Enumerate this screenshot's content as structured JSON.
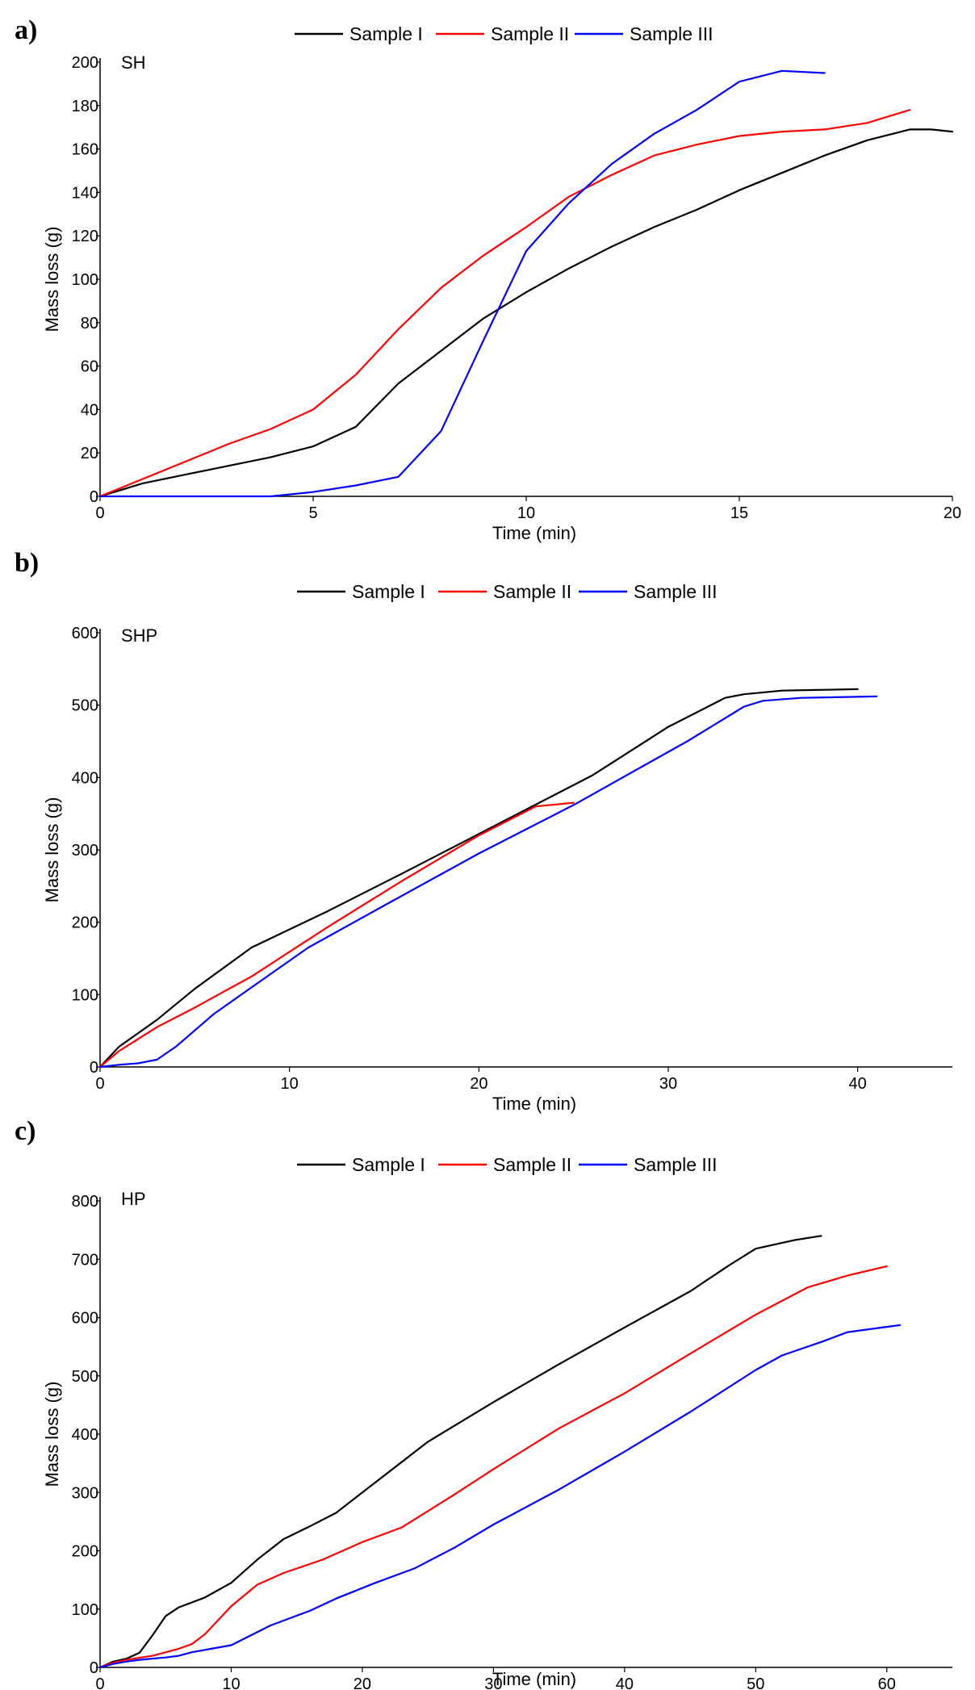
{
  "colors": {
    "Sample I": "#000000",
    "Sample II": "#ff0000",
    "Sample III": "#0000ff"
  },
  "chart_data": [
    {
      "type": "line",
      "panel_label": "a)",
      "title": "SH",
      "xlabel": "Time (min)",
      "ylabel": "Mass loss (g)",
      "xlim": [
        0,
        20
      ],
      "ylim": [
        0,
        200
      ],
      "xticks": [
        0,
        5,
        10,
        15,
        20
      ],
      "yticks": [
        0,
        20,
        40,
        60,
        80,
        100,
        120,
        140,
        160,
        180,
        200
      ],
      "legend": [
        "Sample I",
        "Sample II",
        "Sample III"
      ],
      "series": [
        {
          "name": "Sample I",
          "x": [
            0,
            1,
            2,
            3,
            4,
            5,
            6,
            7,
            8,
            9,
            10,
            11,
            12,
            13,
            14,
            15,
            16,
            17,
            18,
            19,
            19.5,
            20
          ],
          "y": [
            0,
            6,
            10,
            14,
            18,
            23,
            32,
            52,
            67,
            82,
            94,
            105,
            115,
            124,
            132,
            141,
            149,
            157,
            164,
            169,
            169,
            168
          ]
        },
        {
          "name": "Sample II",
          "x": [
            0,
            1,
            2,
            3,
            4,
            5,
            6,
            7,
            8,
            9,
            10,
            11,
            12,
            13,
            14,
            15,
            16,
            17,
            18,
            19
          ],
          "y": [
            0,
            8,
            16,
            24,
            31,
            40,
            56,
            77,
            96,
            111,
            124,
            138,
            148,
            157,
            162,
            166,
            168,
            169,
            172,
            178
          ]
        },
        {
          "name": "Sample III",
          "x": [
            0,
            1,
            2,
            3,
            4,
            5,
            6,
            7,
            8,
            9,
            10,
            11,
            12,
            13,
            14,
            15,
            16,
            17
          ],
          "y": [
            0,
            0,
            0,
            0,
            0,
            2,
            5,
            9,
            30,
            72,
            113,
            135,
            153,
            167,
            178,
            191,
            196,
            195
          ]
        }
      ]
    },
    {
      "type": "line",
      "panel_label": "b)",
      "title": "SHP",
      "xlabel": "Time (min)",
      "ylabel": "Mass loss (g)",
      "xlim": [
        0,
        45
      ],
      "ylim": [
        0,
        600
      ],
      "xticks": [
        0,
        10,
        20,
        30,
        40
      ],
      "yticks": [
        0,
        100,
        200,
        300,
        400,
        500,
        600
      ],
      "legend": [
        "Sample I",
        "Sample II",
        "Sample III"
      ],
      "series": [
        {
          "name": "Sample I",
          "x": [
            0,
            1,
            3,
            5,
            8,
            12,
            16,
            20,
            26,
            30,
            33,
            34,
            36,
            40
          ],
          "y": [
            0,
            28,
            65,
            108,
            165,
            215,
            268,
            322,
            403,
            470,
            510,
            515,
            520,
            522
          ]
        },
        {
          "name": "Sample II",
          "x": [
            0,
            1,
            3,
            5,
            8,
            12,
            16,
            20,
            23,
            25
          ],
          "y": [
            0,
            22,
            55,
            82,
            125,
            193,
            258,
            320,
            360,
            365
          ]
        },
        {
          "name": "Sample III",
          "x": [
            0,
            1,
            2,
            3,
            4,
            6,
            8,
            11,
            15,
            20,
            25,
            31,
            34,
            35,
            37,
            41
          ],
          "y": [
            0,
            3,
            5,
            10,
            28,
            73,
            110,
            165,
            223,
            295,
            362,
            450,
            498,
            506,
            510,
            512
          ]
        }
      ]
    },
    {
      "type": "line",
      "panel_label": "c)",
      "title": "HP",
      "xlabel": "Time (min)",
      "ylabel": "Mass loss (g)",
      "xlim": [
        0,
        65
      ],
      "ylim": [
        0,
        800
      ],
      "xticks": [
        0,
        10,
        20,
        30,
        40,
        50,
        60
      ],
      "yticks": [
        0,
        100,
        200,
        300,
        400,
        500,
        600,
        700,
        800
      ],
      "legend": [
        "Sample I",
        "Sample II",
        "Sample III"
      ],
      "series": [
        {
          "name": "Sample I",
          "x": [
            0,
            1,
            2,
            3,
            4,
            5,
            6,
            8,
            10,
            12,
            14,
            16,
            18,
            20,
            25,
            30,
            35,
            40,
            45,
            48,
            50,
            53,
            55
          ],
          "y": [
            0,
            10,
            15,
            25,
            55,
            88,
            103,
            120,
            145,
            185,
            220,
            242,
            265,
            300,
            387,
            455,
            520,
            583,
            645,
            690,
            718,
            733,
            740
          ]
        },
        {
          "name": "Sample II",
          "x": [
            0,
            1,
            2,
            4,
            6,
            7,
            8,
            10,
            12,
            14,
            17,
            20,
            23,
            27,
            30,
            35,
            40,
            45,
            50,
            54,
            57,
            60
          ],
          "y": [
            0,
            8,
            13,
            20,
            32,
            40,
            57,
            105,
            142,
            162,
            185,
            215,
            240,
            296,
            340,
            410,
            470,
            538,
            605,
            652,
            672,
            688
          ]
        },
        {
          "name": "Sample III",
          "x": [
            0,
            1,
            2,
            3,
            5,
            6,
            7,
            8,
            10,
            13,
            16,
            18,
            21,
            24,
            27,
            30,
            35,
            40,
            45,
            50,
            52,
            55,
            57,
            61
          ],
          "y": [
            0,
            6,
            10,
            13,
            17,
            20,
            26,
            30,
            38,
            72,
            97,
            118,
            145,
            170,
            205,
            245,
            305,
            370,
            438,
            510,
            535,
            558,
            575,
            587
          ]
        }
      ]
    }
  ]
}
